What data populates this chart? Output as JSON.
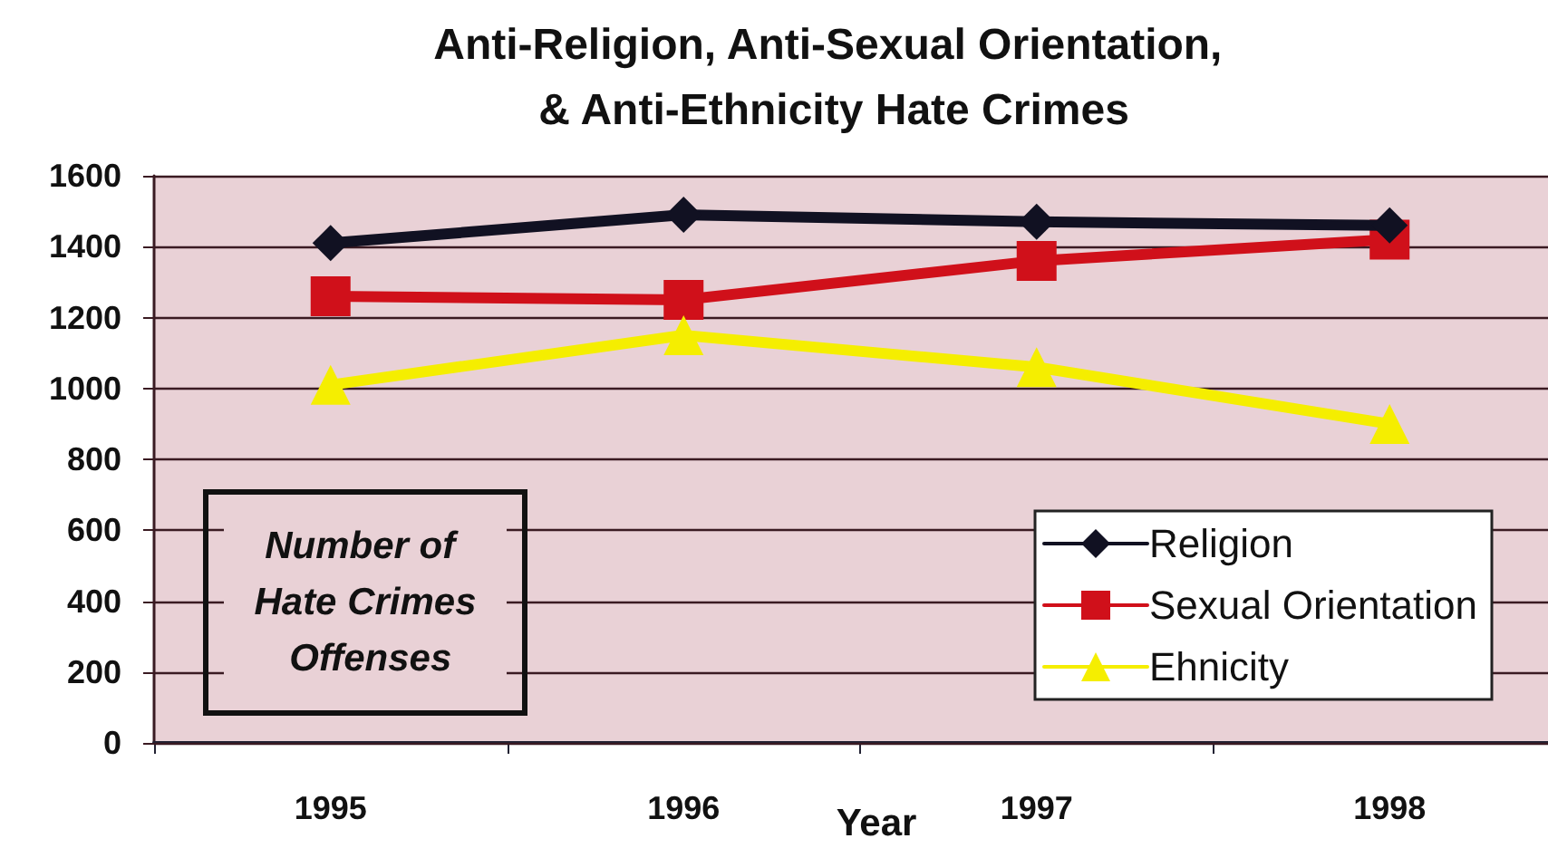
{
  "chart_data": {
    "type": "line",
    "title": "Anti-Religion, Anti-Sexual Orientation, & Anti-Ethnicity Hate Crimes",
    "xlabel": "Year",
    "ylabel": "Number of Hate Crimes Offenses",
    "categories": [
      "1995",
      "1996",
      "1997",
      "1998"
    ],
    "series": [
      {
        "name": "Religion",
        "color": "#111122",
        "marker": "diamond",
        "values": [
          1410,
          1490,
          1470,
          1460
        ]
      },
      {
        "name": "Sexual Orientation",
        "color": "#d0101a",
        "marker": "square",
        "values": [
          1260,
          1250,
          1360,
          1420
        ]
      },
      {
        "name": "Ehnicity",
        "color": "#f5ee00",
        "marker": "triangle",
        "values": [
          1010,
          1150,
          1060,
          900
        ]
      }
    ],
    "ylim": [
      0,
      1600
    ],
    "yticks": [
      0,
      200,
      400,
      600,
      800,
      1000,
      1200,
      1400,
      1600
    ],
    "grid": "y",
    "legend": "bottom right",
    "line_style": "solid"
  }
}
